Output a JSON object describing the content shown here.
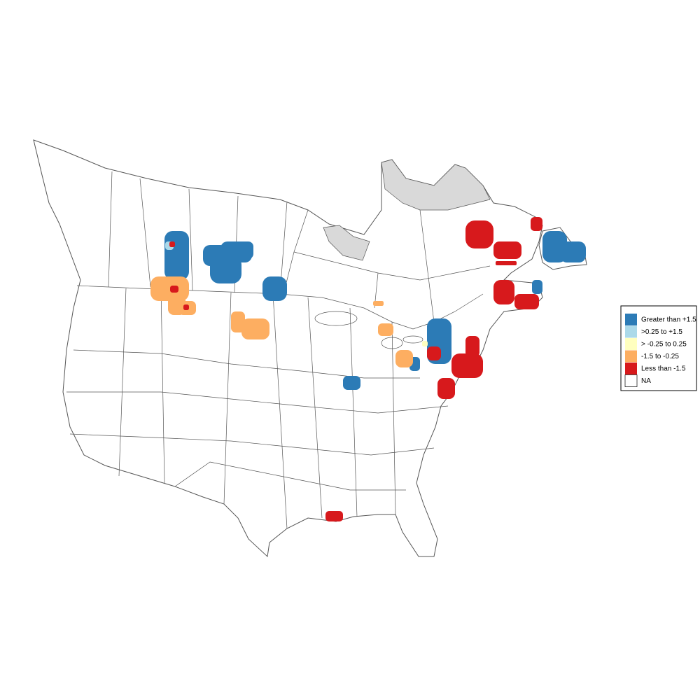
{
  "legend": {
    "items": [
      {
        "label": "Greater than +1.5",
        "color": "#2c7bb6"
      },
      {
        "label": ">0.25 to +1.5",
        "color": "#abd9e9"
      },
      {
        "label": "> -0.25 to 0.25",
        "color": "#ffffbf"
      },
      {
        "label": "-1.5 to -0.25",
        "color": "#fdae61"
      },
      {
        "label": "Less than -1.5",
        "color": "#d7191c"
      },
      {
        "label": "NA",
        "color": "#ffffff"
      }
    ]
  }
}
